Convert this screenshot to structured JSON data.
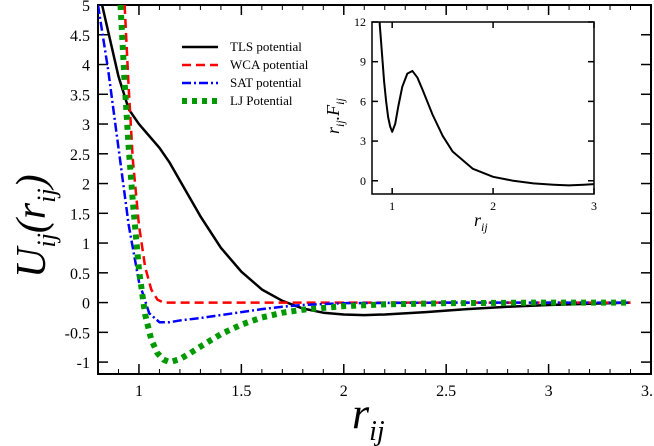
{
  "chart_data": [
    {
      "type": "line",
      "xlim": [
        0.8,
        3.5
      ],
      "ylim": [
        -1.2,
        5
      ],
      "x_ticks": [
        1,
        1.5,
        2,
        2.5,
        3,
        3.5
      ],
      "x_tick_labels": [
        "1",
        "1.5",
        "2",
        "2.5",
        "3",
        "3.5"
      ],
      "y_ticks": [
        -1,
        -0.5,
        0,
        0.5,
        1,
        1.5,
        2,
        2.5,
        3,
        3.5,
        4,
        4.5,
        5
      ],
      "y_tick_labels": [
        "-1",
        "-0.5",
        "0",
        "0.5",
        "1",
        "1.5",
        "2",
        "2.5",
        "3",
        "3.5",
        "4",
        "4.5",
        "5"
      ],
      "xlabel": {
        "main": "r",
        "sub": "ij"
      },
      "ylabel": {
        "main": "U",
        "sub": "ij",
        "open": "(r",
        "arg_sub": "ij",
        "close": ")"
      },
      "grid": false,
      "legend_position": "top-left",
      "series": [
        {
          "name": "TLS potential",
          "color": "#000000",
          "style": "solid",
          "x": [
            0.8,
            0.85,
            0.9,
            0.95,
            1.0,
            1.05,
            1.1,
            1.15,
            1.2,
            1.3,
            1.4,
            1.5,
            1.6,
            1.7,
            1.8,
            1.9,
            2.0,
            2.1,
            2.2,
            2.4,
            2.6,
            2.8,
            3.0,
            3.2,
            3.4
          ],
          "y": [
            5.3,
            4.55,
            3.8,
            3.25,
            3.0,
            2.8,
            2.6,
            2.35,
            2.05,
            1.45,
            0.92,
            0.52,
            0.22,
            0.03,
            -0.1,
            -0.17,
            -0.2,
            -0.21,
            -0.2,
            -0.16,
            -0.11,
            -0.07,
            -0.04,
            -0.02,
            0.0
          ]
        },
        {
          "name": "WCA potential",
          "color": "#ff0000",
          "style": "dashed",
          "x": [
            0.93,
            0.95,
            0.97,
            1.0,
            1.03,
            1.06,
            1.09,
            1.12,
            1.5,
            2.0,
            2.5,
            3.0,
            3.4
          ],
          "y": [
            5.0,
            3.6,
            2.4,
            1.3,
            0.6,
            0.22,
            0.05,
            0.0,
            0.0,
            0.0,
            0.0,
            0.0,
            0.0
          ]
        },
        {
          "name": "SAT potential",
          "color": "#0000ff",
          "style": "dashdot",
          "x": [
            0.8,
            0.85,
            0.9,
            0.95,
            1.0,
            1.05,
            1.1,
            1.15,
            1.2,
            1.3,
            1.4,
            1.5,
            1.6,
            1.7,
            1.8,
            2.0,
            2.5,
            3.0,
            3.4
          ],
          "y": [
            5.0,
            3.9,
            2.6,
            1.3,
            0.35,
            -0.18,
            -0.33,
            -0.33,
            -0.3,
            -0.26,
            -0.21,
            -0.16,
            -0.11,
            -0.07,
            -0.04,
            -0.01,
            0.0,
            0.0,
            0.0
          ]
        },
        {
          "name": "LJ Potential",
          "color": "#009900",
          "style": "dotted",
          "x": [
            0.91,
            0.93,
            0.95,
            0.97,
            1.0,
            1.03,
            1.06,
            1.09,
            1.12,
            1.15,
            1.2,
            1.25,
            1.3,
            1.4,
            1.5,
            1.6,
            1.7,
            1.8,
            2.0,
            2.2,
            2.5,
            3.0,
            3.4
          ],
          "y": [
            5.0,
            3.7,
            2.6,
            1.7,
            0.55,
            -0.2,
            -0.62,
            -0.85,
            -0.96,
            -1.0,
            -0.95,
            -0.85,
            -0.74,
            -0.53,
            -0.37,
            -0.25,
            -0.17,
            -0.12,
            -0.06,
            -0.03,
            -0.01,
            0.0,
            0.0
          ]
        }
      ]
    },
    {
      "type": "line",
      "xlim": [
        0.8,
        3
      ],
      "ylim": [
        -1,
        12
      ],
      "x_ticks": [
        1,
        2,
        3
      ],
      "x_tick_labels": [
        "1",
        "2",
        "3"
      ],
      "y_ticks": [
        0,
        3,
        6,
        9,
        12
      ],
      "y_tick_labels": [
        "0",
        "3",
        "6",
        "9",
        "12"
      ],
      "xlabel": {
        "main": "r",
        "sub": "ij"
      },
      "ylabel": {
        "main": "r",
        "sub": "ij",
        "main2": ".F",
        "sub2": "ij"
      },
      "grid": false,
      "series": [
        {
          "color": "#000000",
          "style": "solid",
          "x": [
            0.87,
            0.88,
            0.9,
            0.92,
            0.94,
            0.96,
            0.98,
            1.0,
            1.03,
            1.06,
            1.1,
            1.15,
            1.2,
            1.25,
            1.3,
            1.4,
            1.5,
            1.6,
            1.8,
            2.0,
            2.2,
            2.4,
            2.6,
            2.75,
            2.9,
            3.0
          ],
          "y": [
            12.5,
            11.5,
            9.5,
            7.5,
            6.0,
            4.8,
            4.1,
            3.7,
            4.3,
            5.6,
            7.1,
            8.1,
            8.3,
            7.8,
            6.9,
            5.0,
            3.4,
            2.2,
            0.9,
            0.3,
            0.0,
            -0.2,
            -0.3,
            -0.35,
            -0.3,
            -0.25
          ]
        }
      ]
    }
  ]
}
